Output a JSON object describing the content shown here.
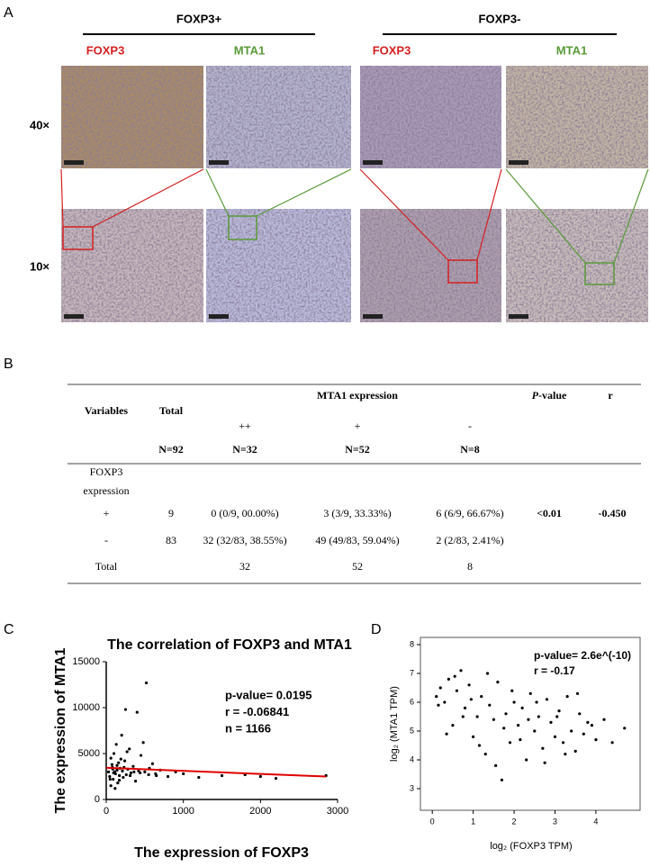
{
  "panel_labels": [
    "A",
    "B",
    "C",
    "D"
  ],
  "panel_a": {
    "groups": [
      "FOXP3+",
      "FOXP3-"
    ],
    "columns": [
      "FOXP3",
      "MTA1",
      "FOXP3",
      "MTA1"
    ],
    "rows": [
      "40×",
      "10×"
    ]
  },
  "table": {
    "head": {
      "variables": "Variables",
      "total": "Total",
      "group": "MTA1 expression",
      "p_italic": "P",
      "p_rest": "-value",
      "r": "r",
      "levels": [
        "++",
        "+",
        "-"
      ],
      "n": [
        "N=92",
        "N=32",
        "N=52",
        "N=8"
      ]
    },
    "section": [
      "FOXP3",
      "expression"
    ],
    "rows": [
      [
        "+",
        "9",
        "0 (0/9, 00.00%)",
        "3 (3/9, 33.33%)",
        "6 (6/9, 66.67%)",
        "<0.01",
        "-0.450"
      ],
      [
        "-",
        "83",
        "32 (32/83, 38.55%)",
        "49 (49/83, 59.04%)",
        "2 (2/83, 2.41%)",
        null,
        null
      ],
      [
        "Total",
        null,
        "32",
        "52",
        "8",
        null,
        null
      ]
    ]
  },
  "chart_data": [
    {
      "type": "scatter",
      "title": "The correlation of FOXP3 and MTA1",
      "xlabel": "The expression of FOXP3",
      "ylabel": "The expression of MTA1",
      "annotations": [
        "p-value= 0.0195",
        "r = -0.06841",
        "n = 1166"
      ],
      "xlim": [
        0,
        3000
      ],
      "xticks": [
        0,
        1000,
        2000,
        3000
      ],
      "ylim": [
        0,
        15000
      ],
      "yticks": [
        0,
        5000,
        10000,
        15000
      ],
      "color": "#000000",
      "x": [
        30,
        45,
        60,
        80,
        90,
        100,
        110,
        120,
        130,
        140,
        150,
        160,
        170,
        180,
        200,
        210,
        220,
        240,
        250,
        260,
        280,
        300,
        320,
        350,
        380,
        400,
        420,
        450,
        500,
        520,
        550,
        600,
        650,
        700,
        800,
        900,
        1000,
        1200,
        1500,
        1800,
        2000,
        2200,
        2850,
        60,
        75,
        95,
        115,
        140,
        170,
        190,
        230,
        270,
        310,
        360,
        440,
        480,
        560,
        640,
        50,
        85
      ],
      "y": [
        3000,
        2500,
        4500,
        3500,
        2200,
        5000,
        3000,
        2800,
        6000,
        3200,
        1800,
        4000,
        2600,
        3400,
        7000,
        3100,
        2400,
        4200,
        9800,
        2700,
        3300,
        5500,
        2900,
        3600,
        2000,
        9500,
        3100,
        4800,
        3000,
        12700,
        2700,
        3900,
        2600,
        3200,
        2500,
        3000,
        2800,
        2400,
        2600,
        2700,
        2500,
        2300,
        2600,
        1500,
        3800,
        2900,
        1200,
        3700,
        2100,
        4400,
        3500,
        5200,
        2600,
        3000,
        2900,
        6200,
        3400,
        2800,
        2200,
        3300
      ],
      "fit": {
        "x": [
          0,
          2850
        ],
        "y": [
          3450,
          2500
        ],
        "color": "#e00000"
      }
    },
    {
      "type": "scatter",
      "xlabel": "log₂ (FOXP3 TPM)",
      "ylabel": "log₂ (MTA1 TPM)",
      "annotations": [
        "p-value= 2.6e^(-10)",
        "r = -0.17"
      ],
      "xlim": [
        -0.29,
        5.08
      ],
      "xticks": [
        0,
        1,
        2,
        3,
        4
      ],
      "ylim": [
        2.25,
        8.25
      ],
      "yticks": [
        3,
        4,
        5,
        6,
        7,
        8
      ],
      "color": "#000000",
      "x": [
        0.1,
        0.2,
        0.3,
        0.4,
        0.5,
        0.6,
        0.7,
        0.8,
        0.9,
        1.0,
        1.1,
        1.2,
        1.3,
        1.4,
        1.5,
        1.6,
        1.7,
        1.8,
        1.9,
        2.0,
        2.1,
        2.2,
        2.3,
        2.4,
        2.5,
        2.6,
        2.7,
        2.8,
        2.9,
        3.0,
        3.1,
        3.2,
        3.3,
        3.4,
        3.5,
        3.6,
        3.7,
        3.8,
        4.0,
        4.2,
        0.15,
        0.35,
        0.55,
        0.75,
        0.95,
        1.15,
        1.35,
        1.55,
        1.75,
        1.95,
        2.15,
        2.35,
        2.55,
        2.75,
        3.05,
        3.25,
        3.55,
        3.9,
        4.4,
        4.7
      ],
      "y": [
        6.2,
        6.5,
        6.0,
        6.8,
        5.2,
        6.4,
        7.1,
        5.8,
        6.6,
        4.8,
        5.5,
        6.2,
        4.2,
        5.9,
        5.4,
        6.7,
        3.3,
        5.6,
        4.6,
        6.0,
        5.2,
        5.8,
        4.0,
        6.3,
        5.0,
        5.5,
        4.4,
        6.1,
        5.3,
        4.8,
        5.7,
        4.6,
        6.2,
        5.0,
        4.3,
        5.6,
        4.9,
        5.3,
        4.7,
        5.4,
        5.9,
        4.9,
        6.9,
        5.5,
        6.1,
        4.5,
        7.0,
        3.8,
        5.1,
        6.4,
        4.7,
        5.4,
        6.0,
        3.9,
        5.5,
        4.2,
        6.3,
        5.2,
        4.6,
        5.1
      ]
    }
  ]
}
